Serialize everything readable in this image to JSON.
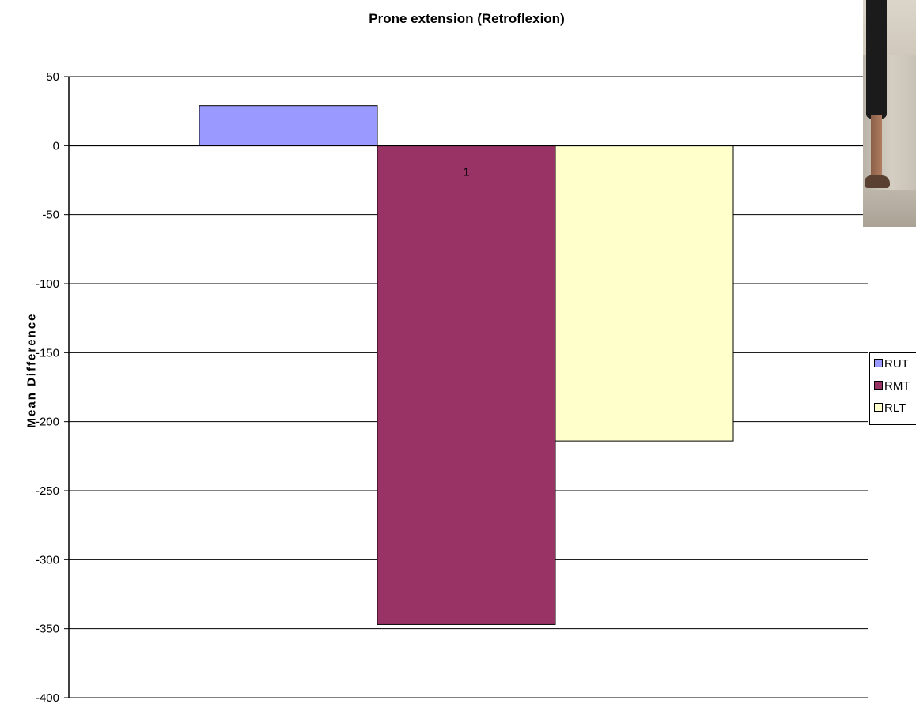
{
  "chart_data": {
    "type": "bar",
    "title": "Prone extension (Retroflexion)",
    "xlabel": "",
    "ylabel": "Mean Difference",
    "categories": [
      "1"
    ],
    "series": [
      {
        "name": "RUT",
        "values": [
          29
        ],
        "color": "#9999ff"
      },
      {
        "name": "RMT",
        "values": [
          -347
        ],
        "color": "#993366"
      },
      {
        "name": "RLT",
        "values": [
          -214
        ],
        "color": "#ffffcc"
      }
    ],
    "ylim": [
      -400,
      50
    ],
    "yticks": [
      "50",
      "0",
      "-50",
      "-100",
      "-150",
      "-200",
      "-250",
      "-300",
      "-350",
      "-400"
    ],
    "grid": true,
    "legend_position": "right"
  }
}
